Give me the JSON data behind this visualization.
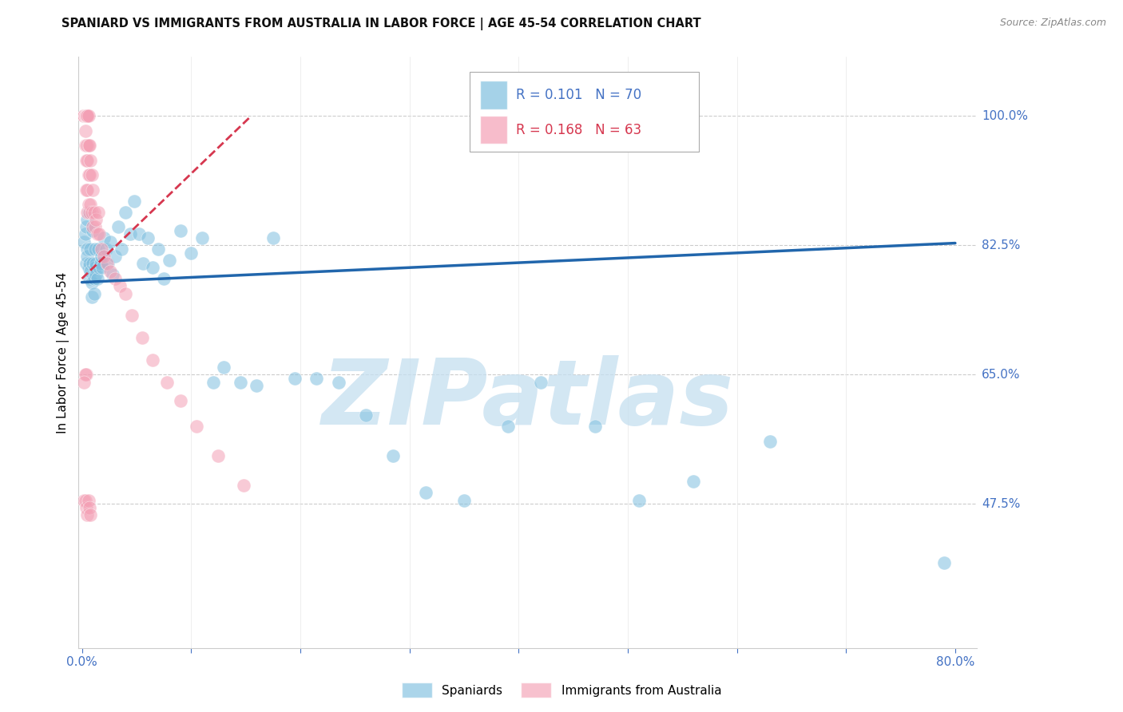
{
  "title": "SPANIARD VS IMMIGRANTS FROM AUSTRALIA IN LABOR FORCE | AGE 45-54 CORRELATION CHART",
  "source": "Source: ZipAtlas.com",
  "ylabel": "In Labor Force | Age 45-54",
  "xlim": [
    -0.003,
    0.82
  ],
  "ylim": [
    0.28,
    1.08
  ],
  "yticks": [
    0.475,
    0.65,
    0.825,
    1.0
  ],
  "ytick_labels": [
    "47.5%",
    "65.0%",
    "82.5%",
    "100.0%"
  ],
  "blue_R": 0.101,
  "blue_N": 70,
  "pink_R": 0.168,
  "pink_N": 63,
  "blue_color": "#7fbfdf",
  "pink_color": "#f4a0b5",
  "blue_line_color": "#2166ac",
  "pink_line_color": "#d6374f",
  "watermark": "ZIPatlas",
  "watermark_color": "#c5dff0",
  "legend_blue_label": "Spaniards",
  "legend_pink_label": "Immigrants from Australia",
  "blue_line_x0": 0.0,
  "blue_line_y0": 0.775,
  "blue_line_x1": 0.8,
  "blue_line_y1": 0.828,
  "pink_line_x0": 0.0,
  "pink_line_y0": 0.78,
  "pink_line_x1": 0.155,
  "pink_line_y1": 1.0,
  "blue_scatter_x": [
    0.002,
    0.003,
    0.004,
    0.004,
    0.005,
    0.005,
    0.005,
    0.006,
    0.006,
    0.007,
    0.007,
    0.008,
    0.008,
    0.009,
    0.009,
    0.01,
    0.01,
    0.011,
    0.011,
    0.012,
    0.012,
    0.013,
    0.013,
    0.014,
    0.015,
    0.016,
    0.017,
    0.018,
    0.019,
    0.02,
    0.022,
    0.024,
    0.026,
    0.028,
    0.03,
    0.033,
    0.036,
    0.04,
    0.044,
    0.048,
    0.052,
    0.056,
    0.06,
    0.065,
    0.07,
    0.075,
    0.08,
    0.09,
    0.1,
    0.11,
    0.12,
    0.13,
    0.145,
    0.16,
    0.175,
    0.195,
    0.215,
    0.235,
    0.26,
    0.285,
    0.315,
    0.35,
    0.39,
    0.42,
    0.47,
    0.51,
    0.56,
    0.63,
    0.79,
    0.003
  ],
  "blue_scatter_y": [
    0.83,
    0.84,
    0.85,
    0.8,
    0.82,
    0.86,
    0.81,
    0.87,
    0.795,
    0.78,
    0.8,
    0.82,
    0.79,
    0.775,
    0.755,
    0.845,
    0.8,
    0.78,
    0.76,
    0.82,
    0.795,
    0.8,
    0.785,
    0.78,
    0.82,
    0.795,
    0.8,
    0.81,
    0.795,
    0.835,
    0.82,
    0.8,
    0.83,
    0.785,
    0.81,
    0.85,
    0.82,
    0.87,
    0.84,
    0.885,
    0.84,
    0.8,
    0.835,
    0.795,
    0.82,
    0.78,
    0.805,
    0.845,
    0.815,
    0.835,
    0.64,
    0.66,
    0.64,
    0.635,
    0.835,
    0.645,
    0.645,
    0.64,
    0.595,
    0.54,
    0.49,
    0.48,
    0.58,
    0.64,
    0.58,
    0.48,
    0.505,
    0.56,
    0.395,
    1.0
  ],
  "pink_scatter_x": [
    0.002,
    0.002,
    0.002,
    0.003,
    0.003,
    0.003,
    0.003,
    0.003,
    0.004,
    0.004,
    0.004,
    0.004,
    0.005,
    0.005,
    0.005,
    0.005,
    0.005,
    0.005,
    0.005,
    0.006,
    0.006,
    0.006,
    0.006,
    0.007,
    0.007,
    0.007,
    0.008,
    0.008,
    0.009,
    0.009,
    0.01,
    0.01,
    0.011,
    0.012,
    0.013,
    0.014,
    0.015,
    0.016,
    0.018,
    0.02,
    0.023,
    0.026,
    0.03,
    0.035,
    0.04,
    0.046,
    0.055,
    0.065,
    0.078,
    0.09,
    0.105,
    0.125,
    0.148,
    0.002,
    0.003,
    0.004,
    0.005,
    0.006,
    0.007,
    0.008,
    0.004,
    0.003,
    0.002
  ],
  "pink_scatter_y": [
    1.0,
    1.0,
    1.0,
    1.0,
    1.0,
    1.0,
    0.98,
    0.96,
    1.0,
    0.96,
    0.94,
    0.9,
    1.0,
    1.0,
    1.0,
    0.96,
    0.94,
    0.9,
    0.87,
    1.0,
    0.96,
    0.92,
    0.88,
    0.96,
    0.92,
    0.87,
    0.94,
    0.88,
    0.92,
    0.87,
    0.9,
    0.85,
    0.87,
    0.85,
    0.86,
    0.84,
    0.87,
    0.84,
    0.82,
    0.81,
    0.8,
    0.79,
    0.78,
    0.77,
    0.76,
    0.73,
    0.7,
    0.67,
    0.64,
    0.615,
    0.58,
    0.54,
    0.5,
    0.48,
    0.48,
    0.47,
    0.46,
    0.48,
    0.47,
    0.46,
    0.65,
    0.65,
    0.64
  ]
}
